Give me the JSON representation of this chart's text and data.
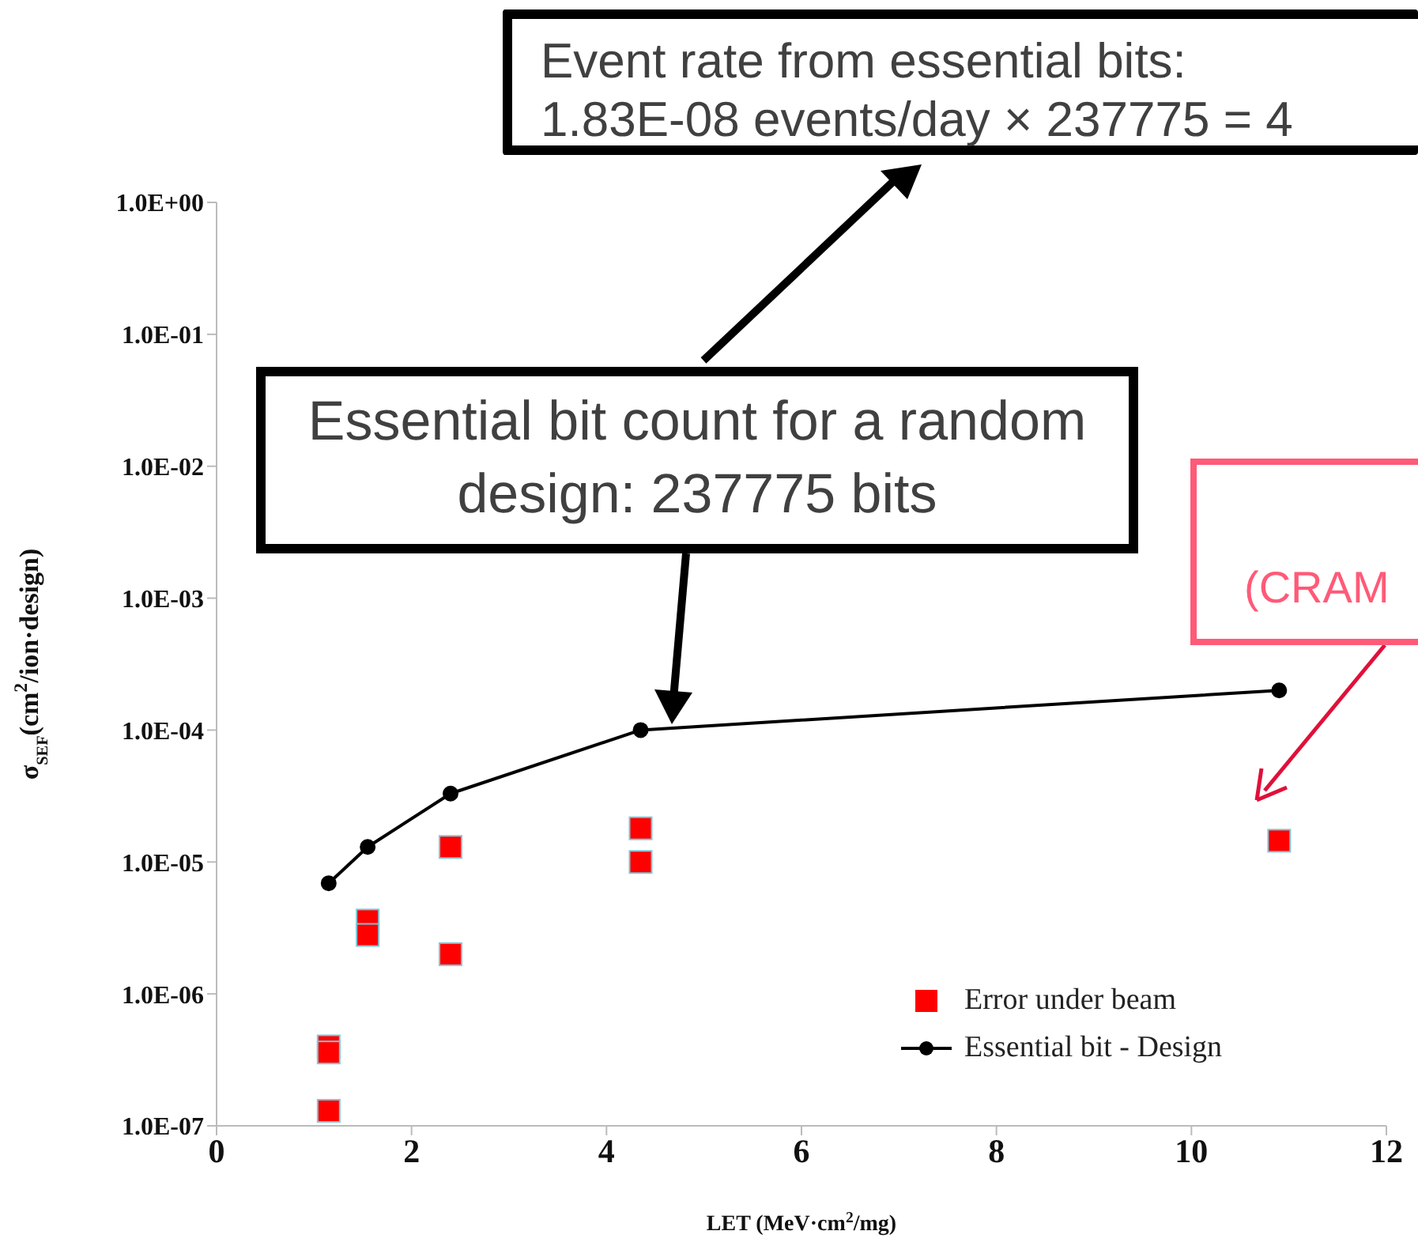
{
  "chart_data": {
    "type": "scatter",
    "xlabel": "LET (MeV·cm$^{2}$/mg)",
    "ylabel": "σ$_{SEF}$(cm$^{2}$/ion·design)",
    "xlim": [
      0,
      12
    ],
    "xticks": [
      0,
      2,
      4,
      6,
      8,
      10,
      12
    ],
    "ylim": [
      1e-07,
      1
    ],
    "yticks": [
      {
        "value": 1e-07,
        "label": "1.0E-07"
      },
      {
        "value": 1e-06,
        "label": "1.0E-06"
      },
      {
        "value": 1e-05,
        "label": "1.0E-05"
      },
      {
        "value": 0.0001,
        "label": "1.0E-04"
      },
      {
        "value": 0.001,
        "label": "1.0E-03"
      },
      {
        "value": 0.01,
        "label": "1.0E-02"
      },
      {
        "value": 0.1,
        "label": "1.0E-01"
      },
      {
        "value": 1,
        "label": "1.0E+00"
      }
    ],
    "log": "y",
    "legend": "bottom right",
    "series": [
      {
        "name": "Error under beam",
        "marker": "square",
        "color": "#ff0000",
        "x": [
          1.15,
          1.15,
          1.15,
          1.55,
          1.55,
          2.4,
          2.4,
          4.35,
          4.35,
          10.9
        ],
        "values": [
          4e-07,
          3.6e-07,
          1.3e-07,
          3.6e-06,
          2.8e-06,
          1.3e-05,
          2e-06,
          1.8e-05,
          1e-05,
          1.45e-05
        ]
      },
      {
        "name": "Essential bit - Design",
        "type": "line",
        "marker": "circle",
        "color": "#000000",
        "x": [
          1.15,
          1.55,
          2.4,
          4.35,
          10.9
        ],
        "values": [
          6.9e-06,
          1.3e-05,
          3.3e-05,
          0.0001,
          0.0002
        ]
      }
    ],
    "annotations": [
      "Event rate from essential bits: 1.83E-08 events/day × 237775 = 4",
      "Essential bit count for a random design: 237775 bits",
      "(CRAM"
    ]
  }
}
